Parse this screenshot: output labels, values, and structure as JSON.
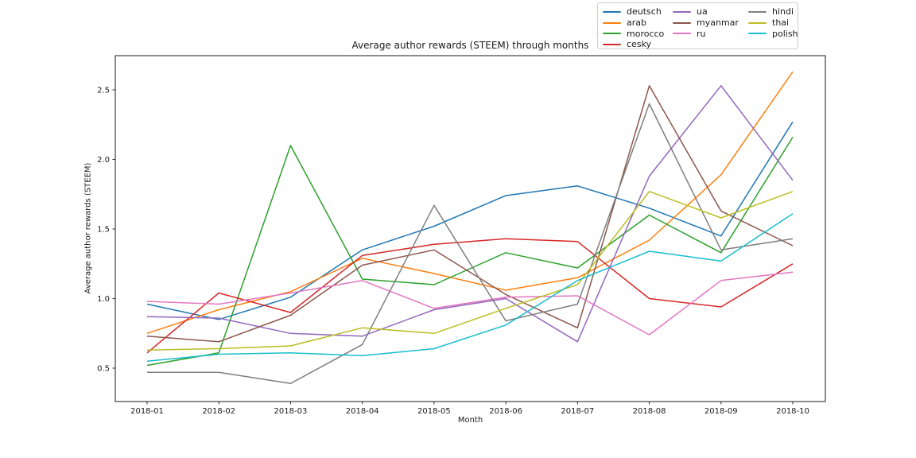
{
  "figure": {
    "title": "Average author rewards (STEEM) through months",
    "xlabel": "Month",
    "ylabel": "Average author rewards (STEEM)"
  },
  "chart_data": {
    "type": "line",
    "title": "Average author rewards (STEEM) through months",
    "xlabel": "Month",
    "ylabel": "Average author rewards (STEEM)",
    "grid": false,
    "legend_position": "top-right-above-axes",
    "legend_columns": [
      4,
      3,
      3
    ],
    "categories": [
      "2018-01",
      "2018-02",
      "2018-03",
      "2018-04",
      "2018-05",
      "2018-06",
      "2018-07",
      "2018-08",
      "2018-09",
      "2018-10"
    ],
    "yticks": [
      "0.5",
      "1.0",
      "1.5",
      "2.0",
      "2.5"
    ],
    "ylim": [
      0.26,
      2.75
    ],
    "series": [
      {
        "name": "deutsch",
        "color": "#1f77b4",
        "values": [
          0.96,
          0.85,
          1.01,
          1.35,
          1.52,
          1.74,
          1.81,
          1.65,
          1.45,
          2.27
        ]
      },
      {
        "name": "arab",
        "color": "#ff7f0e",
        "values": [
          0.75,
          0.92,
          1.05,
          1.29,
          1.18,
          1.06,
          1.15,
          1.42,
          1.89,
          2.63
        ]
      },
      {
        "name": "morocco",
        "color": "#2ca02c",
        "values": [
          0.52,
          0.61,
          2.1,
          1.14,
          1.1,
          1.33,
          1.22,
          1.6,
          1.33,
          2.16
        ]
      },
      {
        "name": "cesky",
        "color": "#d62728",
        "values": [
          0.61,
          1.04,
          0.9,
          1.31,
          1.39,
          1.43,
          1.41,
          1.0,
          0.94,
          1.25
        ]
      },
      {
        "name": "ua",
        "color": "#9467bd",
        "values": [
          0.87,
          0.86,
          0.75,
          0.73,
          0.92,
          1.0,
          0.69,
          1.88,
          2.53,
          1.85
        ]
      },
      {
        "name": "myanmar",
        "color": "#8c564b",
        "values": [
          0.73,
          0.69,
          0.88,
          1.24,
          1.35,
          1.03,
          0.79,
          2.53,
          1.63,
          1.38
        ]
      },
      {
        "name": "ru",
        "color": "#e377c2",
        "values": [
          0.98,
          0.96,
          1.04,
          1.13,
          0.93,
          1.01,
          1.02,
          0.74,
          1.13,
          1.19
        ]
      },
      {
        "name": "hindi",
        "color": "#7f7f7f",
        "values": [
          0.47,
          0.47,
          0.39,
          0.67,
          1.67,
          0.84,
          0.96,
          2.4,
          1.35,
          1.43
        ]
      },
      {
        "name": "thai",
        "color": "#bcbd22",
        "values": [
          0.63,
          0.64,
          0.66,
          0.79,
          0.75,
          0.93,
          1.1,
          1.77,
          1.58,
          1.77
        ]
      },
      {
        "name": "polish",
        "color": "#17becf",
        "values": [
          0.55,
          0.6,
          0.61,
          0.59,
          0.64,
          0.81,
          1.13,
          1.34,
          1.27,
          1.61
        ]
      }
    ]
  }
}
